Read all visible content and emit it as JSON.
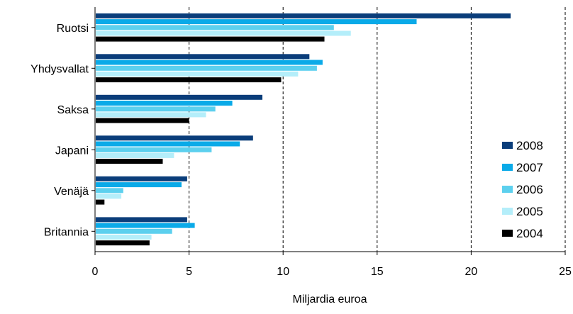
{
  "chart_data": {
    "type": "bar",
    "orientation": "horizontal",
    "title": "",
    "xlabel": "Miljardia euroa",
    "ylabel": "",
    "xlim": [
      0,
      25
    ],
    "x_ticks": [
      0,
      5,
      10,
      15,
      20,
      25
    ],
    "grid": "vertical dashed",
    "legend_position": "right",
    "categories": [
      "Ruotsi",
      "Yhdysvallat",
      "Saksa",
      "Japani",
      "Venäjä",
      "Britannia"
    ],
    "series": [
      {
        "name": "2008",
        "color": "#0a3d7a",
        "values": [
          22.1,
          11.4,
          8.9,
          8.4,
          4.9,
          4.9
        ]
      },
      {
        "name": "2007",
        "color": "#0aaae8",
        "values": [
          17.1,
          12.1,
          7.3,
          7.7,
          4.6,
          5.3
        ]
      },
      {
        "name": "2006",
        "color": "#5cd0ee",
        "values": [
          12.7,
          11.8,
          6.4,
          6.2,
          1.5,
          4.1
        ]
      },
      {
        "name": "2005",
        "color": "#b4eefa",
        "values": [
          13.6,
          10.8,
          5.9,
          4.2,
          1.4,
          3.0
        ]
      },
      {
        "name": "2004",
        "color": "#000000",
        "values": [
          12.2,
          9.9,
          5.0,
          3.6,
          0.5,
          2.9
        ]
      }
    ]
  }
}
